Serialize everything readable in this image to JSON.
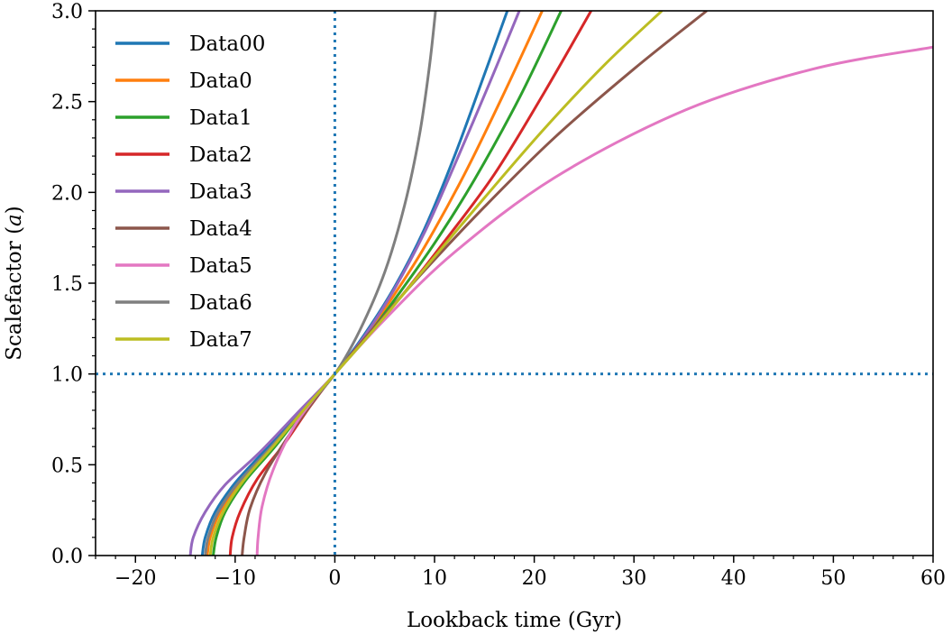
{
  "chart_data": {
    "type": "line",
    "title": "",
    "xlabel": "Lookback time (Gyr)",
    "ylabel_main": "Scalefactor (",
    "ylabel_var": "a",
    "ylabel_end": ")",
    "xlim": [
      -24,
      60
    ],
    "ylim": [
      0,
      3
    ],
    "xticks": [
      -20,
      -10,
      0,
      10,
      20,
      30,
      40,
      50,
      60
    ],
    "xtick_labels": [
      "−20",
      "−10",
      "0",
      "10",
      "20",
      "30",
      "40",
      "50",
      "60"
    ],
    "yticks": [
      0.0,
      0.5,
      1.0,
      1.5,
      2.0,
      2.5,
      3.0
    ],
    "ytick_labels": [
      "0.0",
      "0.5",
      "1.0",
      "1.5",
      "2.0",
      "2.5",
      "3.0"
    ],
    "grid": false,
    "legend_position": "top-left",
    "reference_lines": {
      "x": 0,
      "y": 1.0,
      "color": "#1f77b4",
      "style": "dotted"
    },
    "series": [
      {
        "name": "Data00",
        "color": "#1f77b4",
        "x": [
          -13.3,
          -13.0,
          -12.0,
          -10.0,
          -7.0,
          -3.0,
          0,
          3.0,
          6.0,
          9.0,
          12.0,
          15.0,
          17.3
        ],
        "y": [
          0.0,
          0.1,
          0.24,
          0.4,
          0.58,
          0.82,
          1.0,
          1.22,
          1.48,
          1.8,
          2.2,
          2.65,
          3.0
        ]
      },
      {
        "name": "Data0",
        "color": "#ff7f0e",
        "x": [
          -12.8,
          -12.5,
          -11.5,
          -9.5,
          -6.5,
          -3.0,
          0,
          3.0,
          6.0,
          9.0,
          13.0,
          17.0,
          20.8
        ],
        "y": [
          0.0,
          0.1,
          0.24,
          0.4,
          0.59,
          0.81,
          1.0,
          1.2,
          1.44,
          1.7,
          2.1,
          2.55,
          3.0
        ]
      },
      {
        "name": "Data1",
        "color": "#2ca02c",
        "x": [
          -12.2,
          -11.9,
          -11.0,
          -9.0,
          -6.0,
          -3.0,
          0,
          3.0,
          6.0,
          10.0,
          14.0,
          18.5,
          22.7
        ],
        "y": [
          0.0,
          0.1,
          0.24,
          0.41,
          0.6,
          0.81,
          1.0,
          1.19,
          1.41,
          1.72,
          2.07,
          2.52,
          3.0
        ]
      },
      {
        "name": "Data2",
        "color": "#d62728",
        "x": [
          -10.5,
          -10.3,
          -9.5,
          -7.8,
          -5.0,
          -2.5,
          0,
          3.0,
          7.0,
          11.0,
          16.0,
          21.0,
          25.7
        ],
        "y": [
          0.0,
          0.1,
          0.24,
          0.42,
          0.62,
          0.82,
          1.0,
          1.19,
          1.45,
          1.73,
          2.1,
          2.55,
          3.0
        ]
      },
      {
        "name": "Data3",
        "color": "#9467bd",
        "x": [
          -14.5,
          -14.2,
          -13.0,
          -11.0,
          -7.5,
          -3.5,
          0,
          3.0,
          6.0,
          9.0,
          12.0,
          15.5,
          18.5
        ],
        "y": [
          0.0,
          0.1,
          0.24,
          0.39,
          0.57,
          0.8,
          1.0,
          1.21,
          1.47,
          1.78,
          2.15,
          2.6,
          3.0
        ]
      },
      {
        "name": "Data4",
        "color": "#8c564b",
        "x": [
          -9.3,
          -9.1,
          -8.5,
          -7.0,
          -4.5,
          -2.0,
          0,
          4.0,
          9.0,
          15.0,
          22.0,
          30.0,
          37.3
        ],
        "y": [
          0.0,
          0.1,
          0.26,
          0.45,
          0.67,
          0.86,
          1.0,
          1.26,
          1.57,
          1.92,
          2.3,
          2.68,
          3.0
        ]
      },
      {
        "name": "Data5",
        "color": "#e377c2",
        "x": [
          -7.8,
          -7.7,
          -7.3,
          -6.2,
          -4.2,
          -2.0,
          0,
          5.0,
          12.0,
          22.0,
          35.0,
          48.0,
          60.0
        ],
        "y": [
          0.0,
          0.1,
          0.27,
          0.47,
          0.7,
          0.87,
          1.0,
          1.3,
          1.67,
          2.08,
          2.45,
          2.68,
          2.8
        ]
      },
      {
        "name": "Data6",
        "color": "#7f7f7f",
        "x": [
          -13.0,
          -12.7,
          -11.7,
          -9.7,
          -6.7,
          -3.0,
          0,
          2.5,
          5.0,
          7.0,
          8.5,
          9.5,
          10.1
        ],
        "y": [
          0.0,
          0.1,
          0.24,
          0.4,
          0.58,
          0.81,
          1.0,
          1.24,
          1.56,
          1.93,
          2.32,
          2.7,
          3.0
        ]
      },
      {
        "name": "Data7",
        "color": "#bcbd22",
        "x": [
          -12.5,
          -12.2,
          -11.2,
          -9.2,
          -6.2,
          -3.0,
          0,
          4.0,
          9.0,
          15.0,
          21.0,
          27.0,
          32.8
        ],
        "y": [
          0.0,
          0.1,
          0.24,
          0.41,
          0.6,
          0.81,
          1.0,
          1.25,
          1.58,
          1.97,
          2.35,
          2.7,
          3.0
        ]
      }
    ]
  }
}
